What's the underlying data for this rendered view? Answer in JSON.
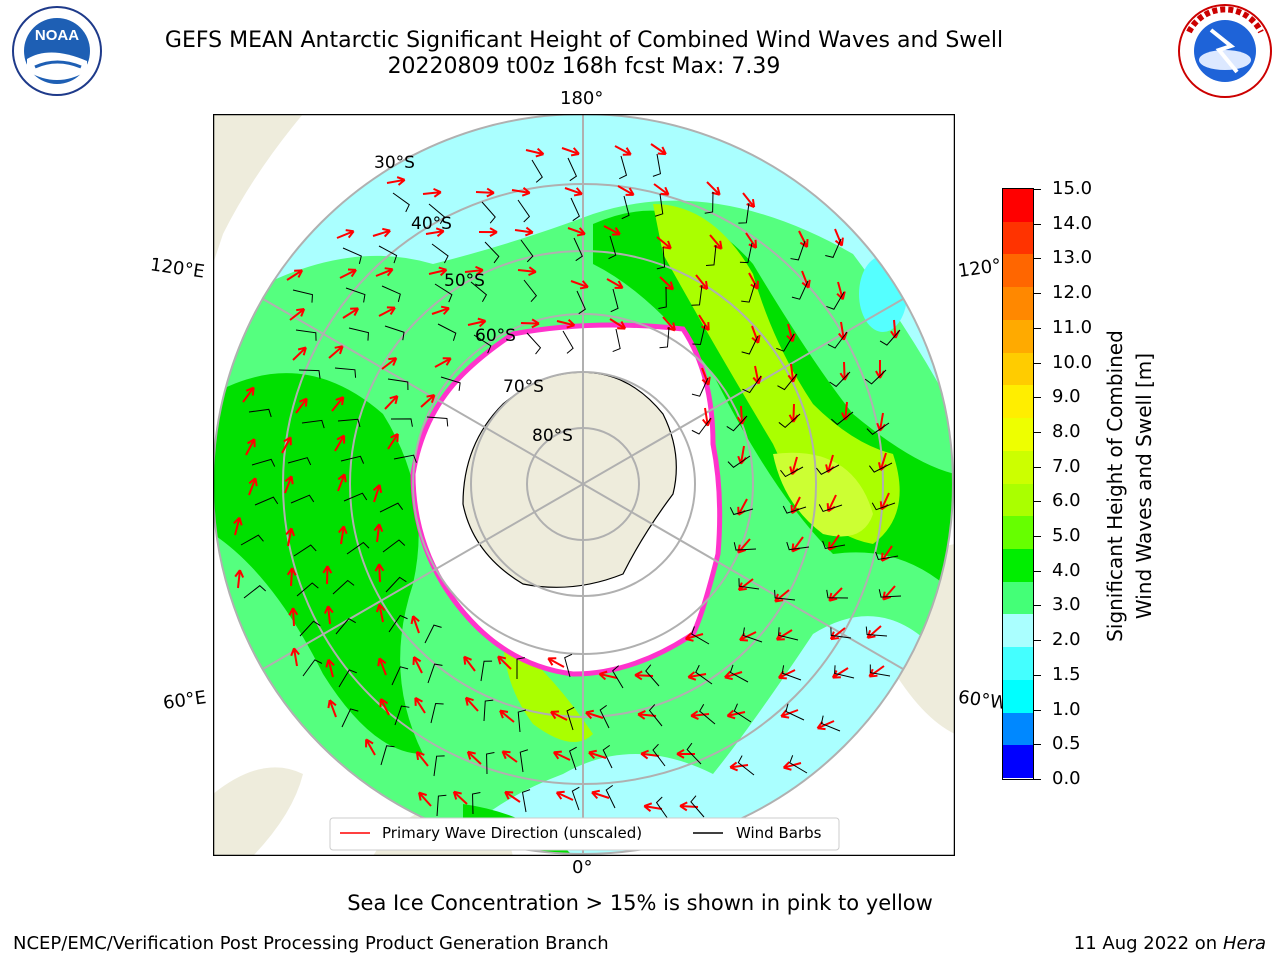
{
  "header": {
    "title_line1": "GEFS MEAN Antarctic Significant Height of Combined Wind Waves and Swell",
    "title_line2": "20220809 t00z 168h fcst   Max: 7.39"
  },
  "logos": {
    "noaa_text": "NOAA",
    "noaa_ring_text": "NATIONAL OCEANIC AND ATMOSPHERIC ADMINISTRATION · U.S. DEPARTMENT OF COMMERCE",
    "nws_ring_text": "NATIONAL WEATHER SERVICE"
  },
  "map": {
    "longitude_labels": {
      "top": "180°",
      "bottom": "0°",
      "left_upper": "120°E",
      "left_lower": "60°E",
      "right_upper": "120°",
      "right_lower": "60°W"
    },
    "latitude_labels": [
      "30°S",
      "40°S",
      "50°S",
      "60°S",
      "70°S",
      "80°S"
    ],
    "legend": {
      "wave_direction": "Primary Wave Direction (unscaled)",
      "wind_barbs": "Wind Barbs"
    },
    "colors": {
      "ocean_low": "#aaffff",
      "ocean_mid": "#55ff7f",
      "ocean_high": "#00dd00",
      "land": "#eeecdc",
      "ice": "#ffffff",
      "ice_edge": "#ff33cc",
      "arrow": "#ff0000"
    }
  },
  "colorbar": {
    "label_line1": "Significant Height of Combined",
    "label_line2": "Wind Waves and Swell [m]",
    "ticks": [
      "15.0",
      "14.0",
      "13.0",
      "12.0",
      "11.0",
      "10.0",
      "9.0",
      "8.0",
      "7.0",
      "6.0",
      "5.0",
      "4.0",
      "3.0",
      "2.0",
      "1.5",
      "1.0",
      "0.5",
      "0.0"
    ],
    "colors_top_to_bottom": [
      "#ff0000",
      "#ff3300",
      "#ff6600",
      "#ff8800",
      "#ffaa00",
      "#ffcc00",
      "#ffee00",
      "#eeff00",
      "#ccff00",
      "#aaff00",
      "#66ff00",
      "#00ee00",
      "#44ff77",
      "#aaffff",
      "#44ffff",
      "#00ffff",
      "#0088ff",
      "#0000ff"
    ]
  },
  "notes": {
    "sea_ice": "Sea Ice Concentration > 15% is shown in pink to yellow",
    "branch": "NCEP/EMC/Verification Post Processing Product Generation Branch",
    "date": "11 Aug 2022 on",
    "machine": "Hera"
  }
}
